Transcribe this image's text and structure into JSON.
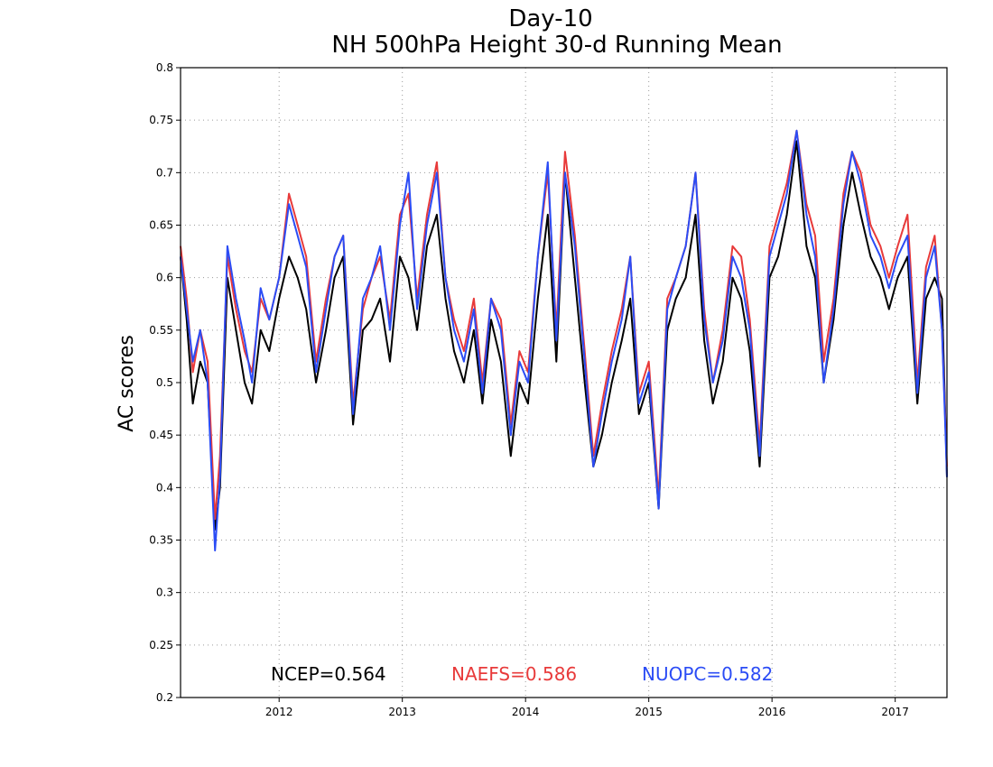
{
  "chart_data": {
    "type": "line",
    "title": "Day-10",
    "subtitle": "NH 500hPa Height 30-d Running Mean",
    "xlabel": "",
    "ylabel": "AC scores",
    "xlim": [
      2011.2,
      2017.42
    ],
    "ylim": [
      0.2,
      0.8
    ],
    "yticks": [
      0.2,
      0.25,
      0.3,
      0.35,
      0.4,
      0.45,
      0.5,
      0.55,
      0.6,
      0.65,
      0.7,
      0.75,
      0.8
    ],
    "ytick_labels": [
      "0.2",
      "0.25",
      "0.3",
      "0.35",
      "0.4",
      "0.45",
      "0.5",
      "0.55",
      "0.6",
      "0.65",
      "0.7",
      "0.75",
      "0.8"
    ],
    "xticks": [
      2012,
      2013,
      2014,
      2015,
      2016,
      2017
    ],
    "xtick_labels": [
      "2012",
      "2013",
      "2014",
      "2015",
      "2016",
      "2017"
    ],
    "grid": true,
    "legend_placement": "bottom",
    "series": [
      {
        "name": "NCEP",
        "color": "#000000",
        "mean_label": "NCEP=0.564",
        "x": [
          2011.2,
          2011.25,
          2011.3,
          2011.36,
          2011.42,
          2011.48,
          2011.52,
          2011.58,
          2011.65,
          2011.72,
          2011.78,
          2011.85,
          2011.92,
          2012.0,
          2012.08,
          2012.15,
          2012.22,
          2012.3,
          2012.38,
          2012.45,
          2012.52,
          2012.6,
          2012.68,
          2012.75,
          2012.82,
          2012.9,
          2012.98,
          2013.05,
          2013.12,
          2013.2,
          2013.28,
          2013.35,
          2013.42,
          2013.5,
          2013.58,
          2013.65,
          2013.72,
          2013.8,
          2013.88,
          2013.95,
          2014.02,
          2014.1,
          2014.18,
          2014.25,
          2014.32,
          2014.4,
          2014.48,
          2014.55,
          2014.62,
          2014.7,
          2014.78,
          2014.85,
          2014.92,
          2015.0,
          2015.08,
          2015.15,
          2015.22,
          2015.3,
          2015.38,
          2015.45,
          2015.52,
          2015.6,
          2015.68,
          2015.75,
          2015.82,
          2015.9,
          2015.98,
          2016.05,
          2016.12,
          2016.2,
          2016.28,
          2016.35,
          2016.42,
          2016.5,
          2016.58,
          2016.65,
          2016.72,
          2016.8,
          2016.88,
          2016.95,
          2017.02,
          2017.1,
          2017.18,
          2017.25,
          2017.32,
          2017.38,
          2017.42
        ],
        "values": [
          0.62,
          0.56,
          0.48,
          0.52,
          0.5,
          0.36,
          0.4,
          0.6,
          0.55,
          0.5,
          0.48,
          0.55,
          0.53,
          0.58,
          0.62,
          0.6,
          0.57,
          0.5,
          0.55,
          0.6,
          0.62,
          0.46,
          0.55,
          0.56,
          0.58,
          0.52,
          0.62,
          0.6,
          0.55,
          0.63,
          0.66,
          0.58,
          0.53,
          0.5,
          0.55,
          0.48,
          0.56,
          0.52,
          0.43,
          0.5,
          0.48,
          0.58,
          0.66,
          0.52,
          0.7,
          0.6,
          0.5,
          0.42,
          0.45,
          0.5,
          0.54,
          0.58,
          0.47,
          0.5,
          0.38,
          0.55,
          0.58,
          0.6,
          0.66,
          0.54,
          0.48,
          0.52,
          0.6,
          0.58,
          0.53,
          0.42,
          0.6,
          0.62,
          0.66,
          0.73,
          0.63,
          0.6,
          0.5,
          0.56,
          0.65,
          0.7,
          0.66,
          0.62,
          0.6,
          0.57,
          0.6,
          0.62,
          0.48,
          0.58,
          0.6,
          0.58,
          0.41
        ]
      },
      {
        "name": "NAEFS",
        "color": "#e83a3a",
        "mean_label": "NAEFS=0.586",
        "x": [
          2011.2,
          2011.25,
          2011.3,
          2011.36,
          2011.42,
          2011.48,
          2011.52,
          2011.58,
          2011.65,
          2011.72,
          2011.78,
          2011.85,
          2011.92,
          2012.0,
          2012.08,
          2012.15,
          2012.22,
          2012.3,
          2012.38,
          2012.45,
          2012.52,
          2012.6,
          2012.68,
          2012.75,
          2012.82,
          2012.9,
          2012.98,
          2013.05,
          2013.12,
          2013.2,
          2013.28,
          2013.35,
          2013.42,
          2013.5,
          2013.58,
          2013.65,
          2013.72,
          2013.8,
          2013.88,
          2013.95,
          2014.02,
          2014.1,
          2014.18,
          2014.25,
          2014.32,
          2014.4,
          2014.48,
          2014.55,
          2014.62,
          2014.7,
          2014.78,
          2014.85,
          2014.92,
          2015.0,
          2015.08,
          2015.15,
          2015.22,
          2015.3,
          2015.38,
          2015.45,
          2015.52,
          2015.6,
          2015.68,
          2015.75,
          2015.82,
          2015.9,
          2015.98,
          2016.05,
          2016.12,
          2016.2,
          2016.28,
          2016.35,
          2016.42,
          2016.5,
          2016.58,
          2016.65,
          2016.72,
          2016.8,
          2016.88,
          2016.95,
          2017.02,
          2017.1,
          2017.18,
          2017.25,
          2017.32,
          2017.38,
          2017.42
        ],
        "values": [
          0.63,
          0.58,
          0.51,
          0.55,
          0.52,
          0.37,
          0.43,
          0.62,
          0.57,
          0.53,
          0.51,
          0.58,
          0.56,
          0.6,
          0.68,
          0.65,
          0.62,
          0.52,
          0.58,
          0.62,
          0.64,
          0.48,
          0.57,
          0.6,
          0.62,
          0.56,
          0.66,
          0.68,
          0.58,
          0.66,
          0.71,
          0.6,
          0.56,
          0.53,
          0.58,
          0.5,
          0.58,
          0.56,
          0.46,
          0.53,
          0.51,
          0.62,
          0.7,
          0.55,
          0.72,
          0.64,
          0.53,
          0.43,
          0.48,
          0.53,
          0.57,
          0.62,
          0.49,
          0.52,
          0.39,
          0.58,
          0.6,
          0.63,
          0.7,
          0.57,
          0.5,
          0.55,
          0.63,
          0.62,
          0.56,
          0.44,
          0.63,
          0.66,
          0.69,
          0.74,
          0.67,
          0.64,
          0.52,
          0.58,
          0.68,
          0.72,
          0.7,
          0.65,
          0.63,
          0.6,
          0.63,
          0.66,
          0.5,
          0.61,
          0.64,
          0.55,
          0.42
        ]
      },
      {
        "name": "NUOPC",
        "color": "#2b4cf5",
        "mean_label": "NUOPC=0.582",
        "x": [
          2011.2,
          2011.25,
          2011.3,
          2011.36,
          2011.42,
          2011.48,
          2011.52,
          2011.58,
          2011.65,
          2011.72,
          2011.78,
          2011.85,
          2011.92,
          2012.0,
          2012.08,
          2012.15,
          2012.22,
          2012.3,
          2012.38,
          2012.45,
          2012.52,
          2012.6,
          2012.68,
          2012.75,
          2012.82,
          2012.9,
          2012.98,
          2013.05,
          2013.12,
          2013.2,
          2013.28,
          2013.35,
          2013.42,
          2013.5,
          2013.58,
          2013.65,
          2013.72,
          2013.8,
          2013.88,
          2013.95,
          2014.02,
          2014.1,
          2014.18,
          2014.25,
          2014.32,
          2014.4,
          2014.48,
          2014.55,
          2014.62,
          2014.7,
          2014.78,
          2014.85,
          2014.92,
          2015.0,
          2015.08,
          2015.15,
          2015.22,
          2015.3,
          2015.38,
          2015.45,
          2015.52,
          2015.6,
          2015.68,
          2015.75,
          2015.82,
          2015.9,
          2015.98,
          2016.05,
          2016.12,
          2016.2,
          2016.28,
          2016.35,
          2016.42,
          2016.5,
          2016.58,
          2016.65,
          2016.72,
          2016.8,
          2016.88,
          2016.95,
          2017.02,
          2017.1,
          2017.18,
          2017.25,
          2017.32,
          2017.38,
          2017.42
        ],
        "values": [
          0.62,
          0.57,
          0.52,
          0.55,
          0.5,
          0.34,
          0.41,
          0.63,
          0.58,
          0.54,
          0.5,
          0.59,
          0.56,
          0.6,
          0.67,
          0.64,
          0.61,
          0.51,
          0.57,
          0.62,
          0.64,
          0.47,
          0.58,
          0.6,
          0.63,
          0.55,
          0.65,
          0.7,
          0.57,
          0.65,
          0.7,
          0.6,
          0.55,
          0.52,
          0.57,
          0.49,
          0.58,
          0.55,
          0.45,
          0.52,
          0.5,
          0.62,
          0.71,
          0.54,
          0.7,
          0.63,
          0.52,
          0.42,
          0.47,
          0.52,
          0.56,
          0.62,
          0.48,
          0.51,
          0.38,
          0.57,
          0.6,
          0.63,
          0.7,
          0.56,
          0.5,
          0.54,
          0.62,
          0.6,
          0.55,
          0.43,
          0.62,
          0.65,
          0.68,
          0.74,
          0.66,
          0.62,
          0.5,
          0.57,
          0.67,
          0.72,
          0.69,
          0.64,
          0.62,
          0.59,
          0.62,
          0.64,
          0.49,
          0.6,
          0.63,
          0.55,
          0.41
        ]
      }
    ]
  }
}
